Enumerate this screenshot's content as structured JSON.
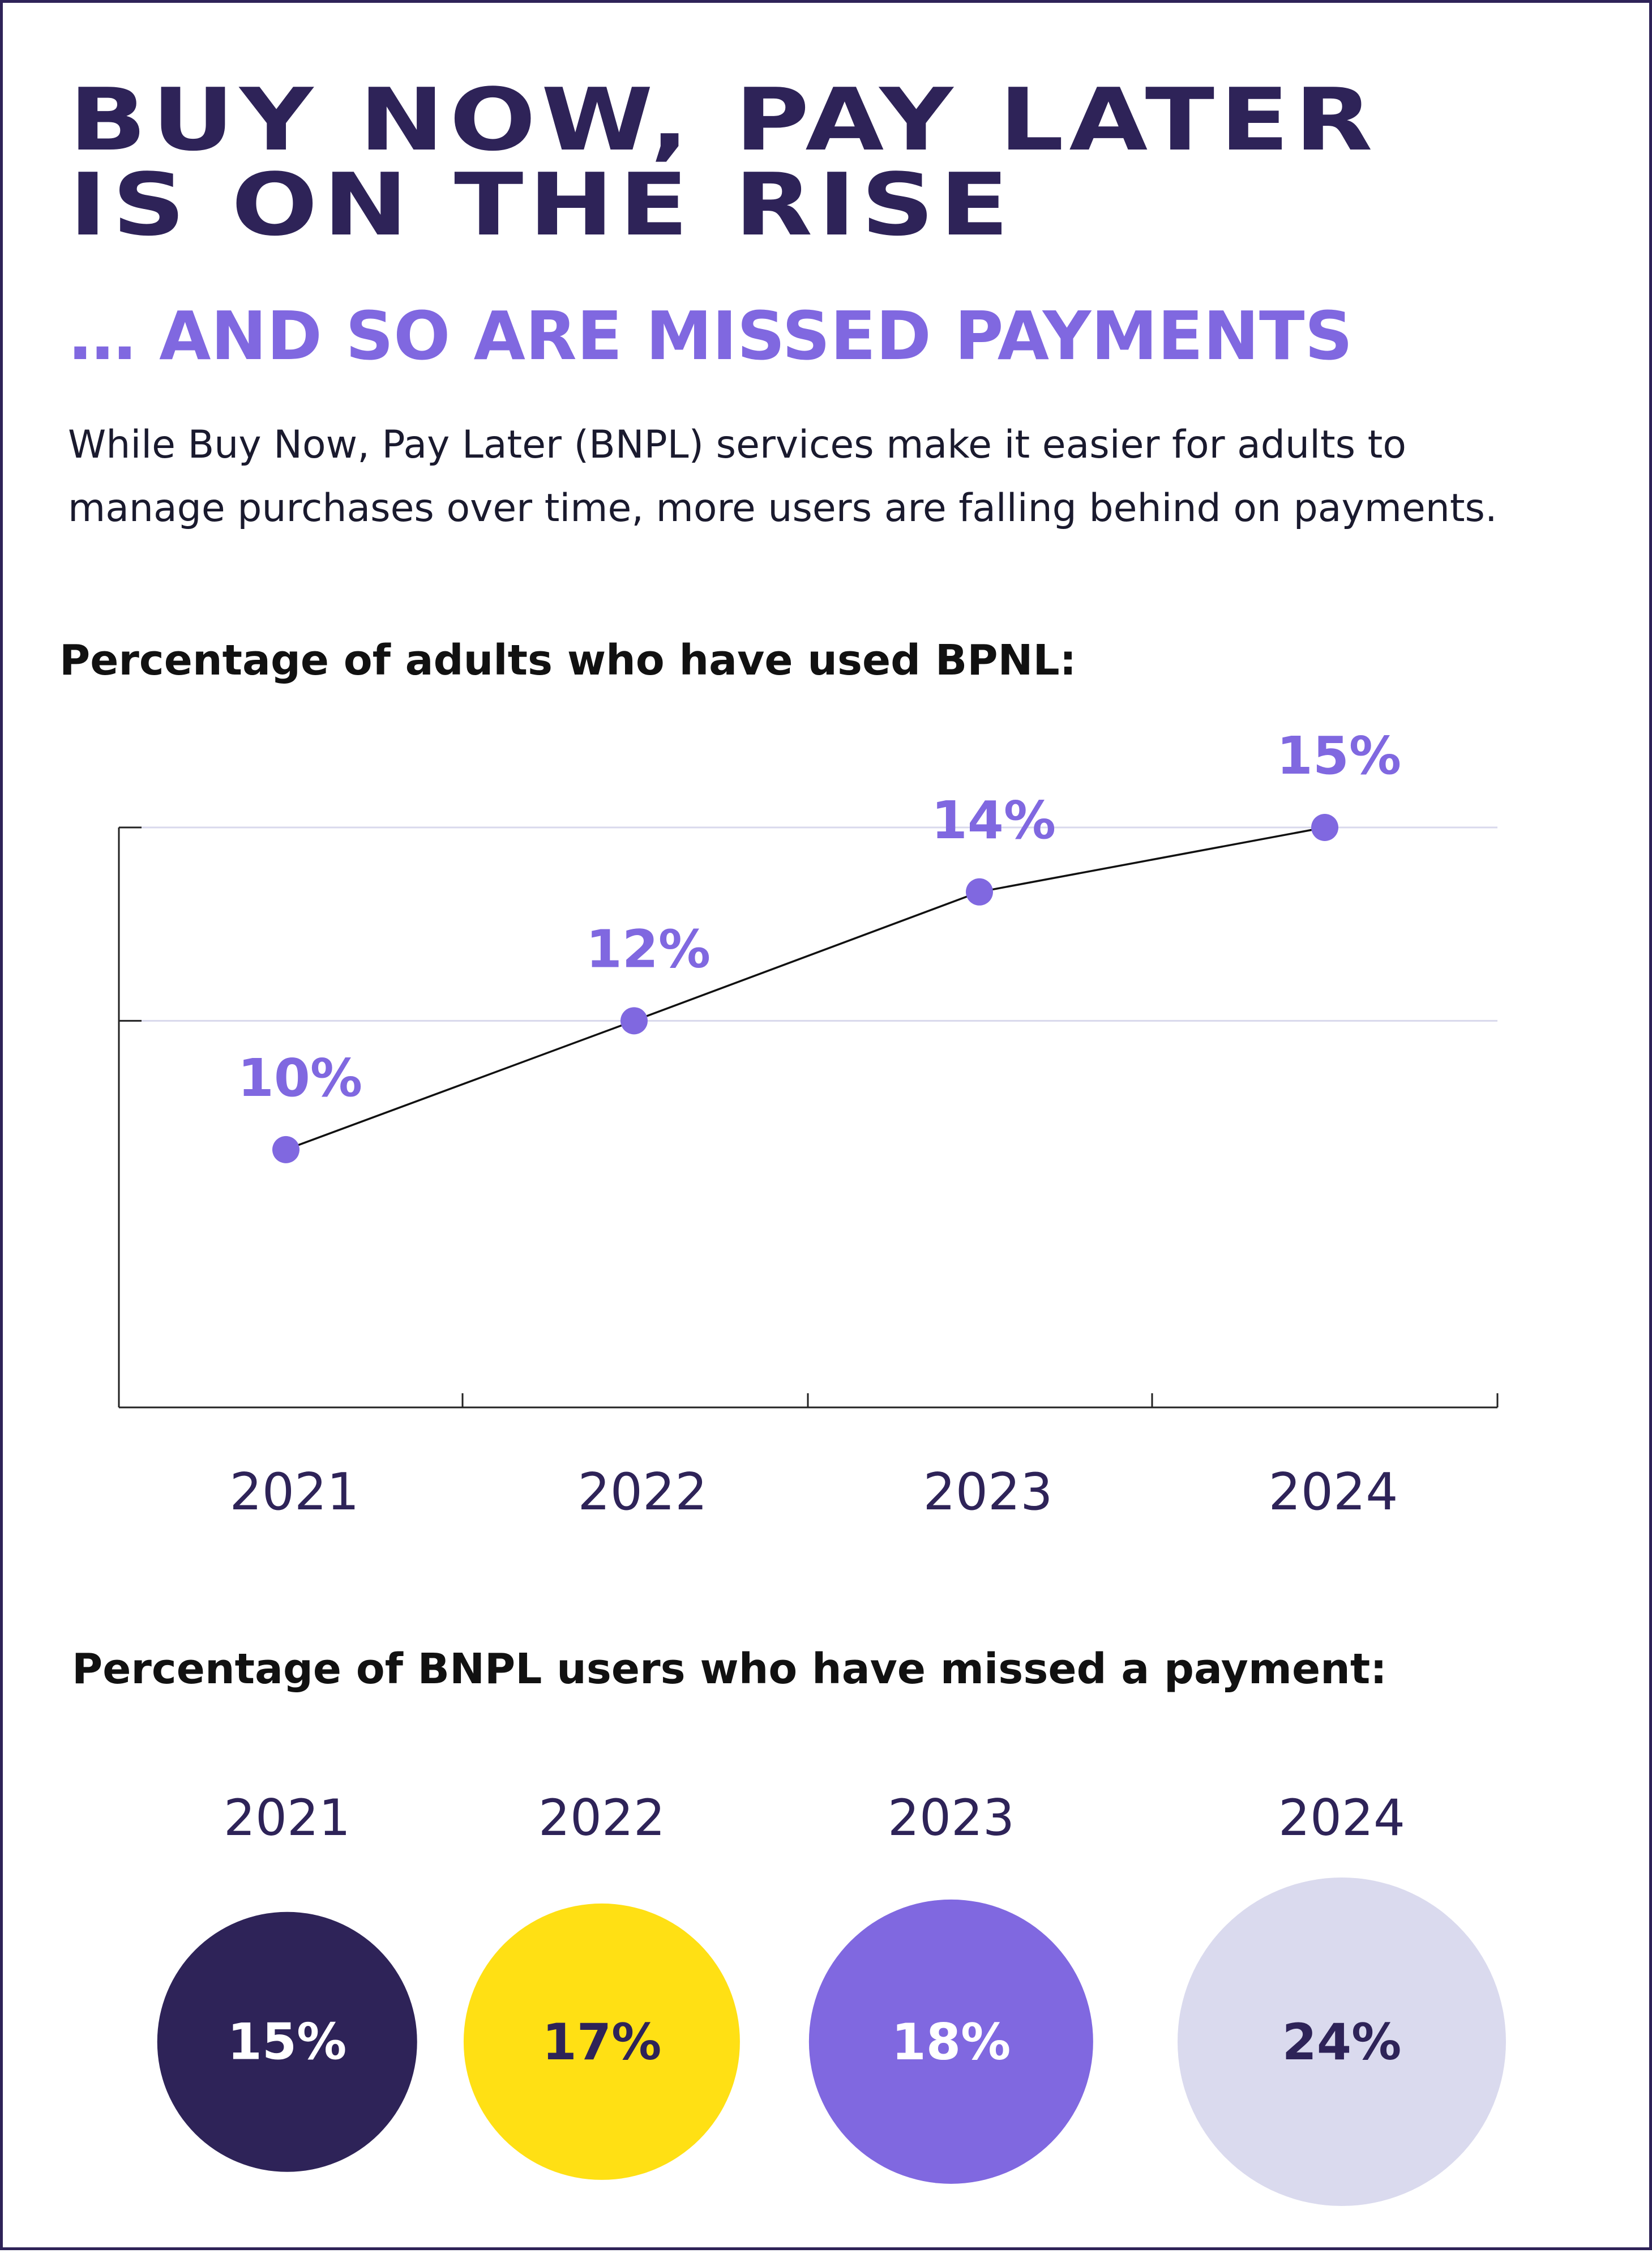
{
  "header": {
    "title_line1": "BUY NOW, PAY LATER",
    "title_line2": "IS ON THE RISE",
    "subtitle": "… AND SO ARE MISSED PAYMENTS",
    "intro_line1": "While Buy Now, Pay Later (BNPL) services make it easier for adults to",
    "intro_line2": "manage purchases over time, more users are falling behind on payments."
  },
  "colors": {
    "navy": "#2e2358",
    "purple": "#8068e0",
    "yellow": "#ffe014",
    "lavender": "#dadaee",
    "gridline": "#d8d8ec"
  },
  "chart_data": [
    {
      "type": "line",
      "title": "Percentage of adults who have used BPNL:",
      "categories": [
        "2021",
        "2022",
        "2023",
        "2024"
      ],
      "series": [
        {
          "values": [
            10,
            12,
            14,
            15
          ],
          "labels": [
            "10%",
            "12%",
            "14%",
            "15%"
          ]
        }
      ],
      "ylim": [
        6,
        15
      ],
      "grid": true
    },
    {
      "type": "bubble",
      "title": "Percentage of BNPL users who have missed a payment:",
      "categories": [
        "2021",
        "2022",
        "2023",
        "2024"
      ],
      "values": [
        15,
        17,
        18,
        24
      ],
      "labels": [
        "15%",
        "17%",
        "18%",
        "24%"
      ],
      "colors": [
        "#2e2358",
        "#ffe014",
        "#8068e0",
        "#dadaee"
      ],
      "label_colors": [
        "#ffffff",
        "#2e2358",
        "#ffffff",
        "#2e2358"
      ]
    }
  ]
}
